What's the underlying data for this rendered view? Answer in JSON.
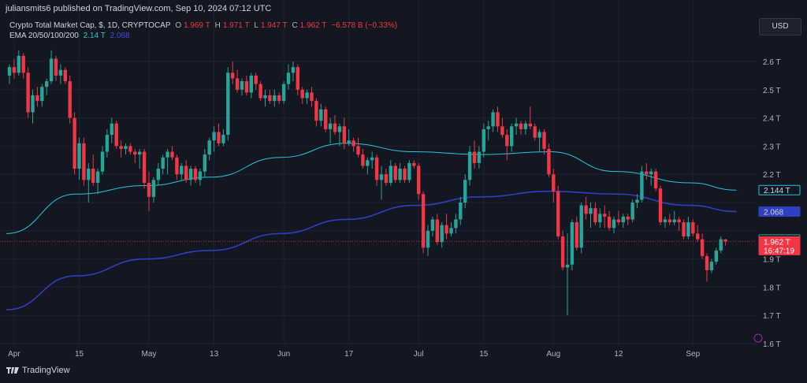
{
  "header": {
    "published": "juliansmits6 published on TradingView.com, Sep 10, 2024 07:12 UTC"
  },
  "legend": {
    "title": "Crypto Total Market Cap, $, 1D, CRYPTOCAP",
    "o_label": "O",
    "o_value": "1.969 T",
    "h_label": "H",
    "h_value": "1.971 T",
    "l_label": "L",
    "l_value": "1.947 T",
    "c_label": "C",
    "c_value": "1.962 T",
    "change": "−6.578 B (−0.33%)",
    "ema_label": "EMA 20/50/100/200",
    "ema1_value": "2.14 T",
    "ema2_value": "2.068"
  },
  "currency": "USD",
  "brand": "TradingView",
  "colors": {
    "up": "#26a69a",
    "down": "#f23645",
    "ema_fast": "#26c6da",
    "ema_slow": "#2f3fc2",
    "background": "#131722"
  },
  "chart_data": {
    "type": "candlestick",
    "y_axis": {
      "ticks": [
        "2.6 T",
        "2.5 T",
        "2.4 T",
        "2.3 T",
        "2.2 T",
        "1.9 T",
        "1.8 T",
        "1.7 T",
        "1.6 T"
      ],
      "tick_values": [
        2.6,
        2.5,
        2.4,
        2.3,
        2.2,
        1.9,
        1.8,
        1.7,
        1.6
      ],
      "range": [
        1.58,
        2.67
      ],
      "unit": "T"
    },
    "x_axis": {
      "ticks": [
        "Apr",
        "15",
        "May",
        "13",
        "Jun",
        "17",
        "Jul",
        "15",
        "Aug",
        "12",
        "Sep"
      ],
      "tick_index": [
        1,
        15,
        30,
        44,
        59,
        73,
        88,
        102,
        117,
        131,
        147
      ]
    },
    "price_labels": [
      {
        "text": "2.144 T",
        "value": 2.144,
        "style": "ema_fast"
      },
      {
        "text": "2.068",
        "value": 2.068,
        "style": "ema_slow"
      },
      {
        "text": "1.969 T",
        "value": 1.969,
        "style": "open"
      },
      {
        "text": "1.962 T",
        "value": 1.962,
        "style": "last"
      },
      {
        "text": "16:47:19",
        "value": 1.962,
        "style": "countdown"
      }
    ],
    "last_price": 1.962,
    "candles": [
      [
        2.55,
        2.59,
        2.52,
        2.58
      ],
      [
        2.58,
        2.61,
        2.54,
        2.56
      ],
      [
        2.56,
        2.64,
        2.55,
        2.62
      ],
      [
        2.62,
        2.63,
        2.54,
        2.56
      ],
      [
        2.56,
        2.58,
        2.4,
        2.42
      ],
      [
        2.42,
        2.5,
        2.38,
        2.48
      ],
      [
        2.48,
        2.51,
        2.44,
        2.46
      ],
      [
        2.46,
        2.52,
        2.44,
        2.51
      ],
      [
        2.51,
        2.54,
        2.48,
        2.53
      ],
      [
        2.53,
        2.64,
        2.52,
        2.61
      ],
      [
        2.61,
        2.62,
        2.53,
        2.55
      ],
      [
        2.55,
        2.59,
        2.52,
        2.57
      ],
      [
        2.57,
        2.58,
        2.52,
        2.53
      ],
      [
        2.53,
        2.55,
        2.38,
        2.4
      ],
      [
        2.4,
        2.42,
        2.2,
        2.22
      ],
      [
        2.22,
        2.33,
        2.18,
        2.31
      ],
      [
        2.31,
        2.33,
        2.16,
        2.18
      ],
      [
        2.18,
        2.24,
        2.1,
        2.22
      ],
      [
        2.22,
        2.27,
        2.16,
        2.17
      ],
      [
        2.17,
        2.22,
        2.13,
        2.21
      ],
      [
        2.21,
        2.3,
        2.2,
        2.28
      ],
      [
        2.28,
        2.36,
        2.26,
        2.34
      ],
      [
        2.34,
        2.4,
        2.31,
        2.38
      ],
      [
        2.38,
        2.39,
        2.29,
        2.3
      ],
      [
        2.3,
        2.32,
        2.26,
        2.29
      ],
      [
        2.29,
        2.31,
        2.27,
        2.3
      ],
      [
        2.3,
        2.31,
        2.27,
        2.28
      ],
      [
        2.28,
        2.29,
        2.24,
        2.27
      ],
      [
        2.27,
        2.29,
        2.22,
        2.28
      ],
      [
        2.28,
        2.29,
        2.15,
        2.17
      ],
      [
        2.17,
        2.21,
        2.07,
        2.12
      ],
      [
        2.12,
        2.19,
        2.1,
        2.18
      ],
      [
        2.18,
        2.24,
        2.16,
        2.22
      ],
      [
        2.22,
        2.27,
        2.2,
        2.26
      ],
      [
        2.26,
        2.29,
        2.2,
        2.28
      ],
      [
        2.28,
        2.3,
        2.25,
        2.26
      ],
      [
        2.26,
        2.27,
        2.18,
        2.2
      ],
      [
        2.2,
        2.24,
        2.18,
        2.23
      ],
      [
        2.23,
        2.25,
        2.17,
        2.18
      ],
      [
        2.18,
        2.23,
        2.16,
        2.22
      ],
      [
        2.22,
        2.23,
        2.17,
        2.18
      ],
      [
        2.18,
        2.22,
        2.16,
        2.21
      ],
      [
        2.21,
        2.29,
        2.19,
        2.27
      ],
      [
        2.27,
        2.33,
        2.25,
        2.32
      ],
      [
        2.32,
        2.37,
        2.28,
        2.35
      ],
      [
        2.35,
        2.38,
        2.3,
        2.31
      ],
      [
        2.31,
        2.36,
        2.3,
        2.34
      ],
      [
        2.34,
        2.58,
        2.32,
        2.56
      ],
      [
        2.56,
        2.6,
        2.52,
        2.54
      ],
      [
        2.54,
        2.57,
        2.49,
        2.5
      ],
      [
        2.5,
        2.54,
        2.48,
        2.53
      ],
      [
        2.53,
        2.55,
        2.48,
        2.49
      ],
      [
        2.49,
        2.56,
        2.47,
        2.55
      ],
      [
        2.55,
        2.56,
        2.5,
        2.52
      ],
      [
        2.52,
        2.53,
        2.46,
        2.47
      ],
      [
        2.47,
        2.5,
        2.44,
        2.48
      ],
      [
        2.48,
        2.5,
        2.45,
        2.46
      ],
      [
        2.46,
        2.5,
        2.44,
        2.48
      ],
      [
        2.48,
        2.49,
        2.45,
        2.46
      ],
      [
        2.46,
        2.53,
        2.45,
        2.52
      ],
      [
        2.52,
        2.59,
        2.5,
        2.56
      ],
      [
        2.56,
        2.6,
        2.53,
        2.58
      ],
      [
        2.58,
        2.59,
        2.48,
        2.5
      ],
      [
        2.5,
        2.51,
        2.45,
        2.47
      ],
      [
        2.47,
        2.5,
        2.45,
        2.49
      ],
      [
        2.49,
        2.51,
        2.44,
        2.46
      ],
      [
        2.46,
        2.47,
        2.37,
        2.39
      ],
      [
        2.39,
        2.45,
        2.37,
        2.43
      ],
      [
        2.43,
        2.44,
        2.35,
        2.36
      ],
      [
        2.36,
        2.4,
        2.31,
        2.38
      ],
      [
        2.38,
        2.41,
        2.34,
        2.35
      ],
      [
        2.35,
        2.38,
        2.3,
        2.37
      ],
      [
        2.37,
        2.4,
        2.29,
        2.31
      ],
      [
        2.31,
        2.36,
        2.3,
        2.32
      ],
      [
        2.32,
        2.33,
        2.28,
        2.3
      ],
      [
        2.3,
        2.33,
        2.26,
        2.27
      ],
      [
        2.27,
        2.29,
        2.22,
        2.23
      ],
      [
        2.23,
        2.26,
        2.2,
        2.25
      ],
      [
        2.25,
        2.28,
        2.22,
        2.26
      ],
      [
        2.26,
        2.27,
        2.16,
        2.18
      ],
      [
        2.18,
        2.23,
        2.11,
        2.2
      ],
      [
        2.2,
        2.22,
        2.16,
        2.17
      ],
      [
        2.17,
        2.25,
        2.16,
        2.23
      ],
      [
        2.23,
        2.24,
        2.17,
        2.18
      ],
      [
        2.18,
        2.24,
        2.17,
        2.22
      ],
      [
        2.22,
        2.23,
        2.17,
        2.18
      ],
      [
        2.18,
        2.25,
        2.17,
        2.24
      ],
      [
        2.24,
        2.25,
        2.22,
        2.23
      ],
      [
        2.23,
        2.24,
        2.11,
        2.13
      ],
      [
        2.13,
        2.14,
        1.92,
        1.94
      ],
      [
        1.94,
        2.02,
        1.91,
        2.0
      ],
      [
        2.0,
        2.05,
        1.98,
        2.04
      ],
      [
        2.04,
        2.06,
        1.95,
        1.96
      ],
      [
        1.96,
        2.03,
        1.94,
        2.02
      ],
      [
        2.02,
        2.06,
        1.97,
        1.99
      ],
      [
        1.99,
        2.03,
        1.98,
        2.01
      ],
      [
        2.01,
        2.06,
        1.99,
        2.04
      ],
      [
        2.04,
        2.12,
        2.02,
        2.1
      ],
      [
        2.1,
        2.2,
        2.08,
        2.18
      ],
      [
        2.18,
        2.3,
        2.16,
        2.28
      ],
      [
        2.28,
        2.32,
        2.22,
        2.24
      ],
      [
        2.24,
        2.3,
        2.22,
        2.28
      ],
      [
        2.28,
        2.38,
        2.26,
        2.36
      ],
      [
        2.36,
        2.39,
        2.32,
        2.37
      ],
      [
        2.37,
        2.43,
        2.35,
        2.42
      ],
      [
        2.42,
        2.44,
        2.35,
        2.37
      ],
      [
        2.37,
        2.4,
        2.33,
        2.34
      ],
      [
        2.34,
        2.36,
        2.25,
        2.3
      ],
      [
        2.3,
        2.38,
        2.28,
        2.37
      ],
      [
        2.37,
        2.4,
        2.34,
        2.38
      ],
      [
        2.38,
        2.39,
        2.34,
        2.36
      ],
      [
        2.36,
        2.39,
        2.34,
        2.38
      ],
      [
        2.38,
        2.44,
        2.36,
        2.37
      ],
      [
        2.37,
        2.38,
        2.32,
        2.33
      ],
      [
        2.33,
        2.36,
        2.28,
        2.35
      ],
      [
        2.35,
        2.36,
        2.27,
        2.29
      ],
      [
        2.29,
        2.31,
        2.19,
        2.2
      ],
      [
        2.2,
        2.22,
        2.1,
        2.14
      ],
      [
        2.14,
        2.16,
        1.97,
        1.98
      ],
      [
        1.98,
        2.0,
        1.86,
        1.87
      ],
      [
        1.87,
        1.99,
        1.7,
        1.88
      ],
      [
        1.88,
        2.04,
        1.86,
        2.03
      ],
      [
        2.03,
        2.05,
        1.93,
        1.94
      ],
      [
        1.94,
        2.1,
        1.92,
        2.09
      ],
      [
        2.09,
        2.12,
        2.04,
        2.06
      ],
      [
        2.06,
        2.1,
        2.01,
        2.08
      ],
      [
        2.08,
        2.1,
        2.02,
        2.03
      ],
      [
        2.03,
        2.08,
        2.01,
        2.06
      ],
      [
        2.06,
        2.09,
        2.01,
        2.05
      ],
      [
        2.05,
        2.07,
        2.0,
        2.01
      ],
      [
        2.01,
        2.05,
        1.99,
        2.04
      ],
      [
        2.04,
        2.07,
        2.02,
        2.03
      ],
      [
        2.03,
        2.06,
        2.01,
        2.05
      ],
      [
        2.05,
        2.06,
        2.02,
        2.04
      ],
      [
        2.04,
        2.11,
        2.03,
        2.1
      ],
      [
        2.1,
        2.13,
        2.08,
        2.11
      ],
      [
        2.11,
        2.23,
        2.1,
        2.21
      ],
      [
        2.21,
        2.24,
        2.18,
        2.2
      ],
      [
        2.2,
        2.22,
        2.16,
        2.21
      ],
      [
        2.21,
        2.22,
        2.14,
        2.15
      ],
      [
        2.15,
        2.16,
        2.02,
        2.03
      ],
      [
        2.03,
        2.05,
        2.01,
        2.04
      ],
      [
        2.04,
        2.06,
        2.02,
        2.03
      ],
      [
        2.03,
        2.07,
        2.02,
        2.04
      ],
      [
        2.04,
        2.05,
        2.0,
        2.03
      ],
      [
        2.03,
        2.04,
        1.97,
        1.98
      ],
      [
        1.98,
        2.05,
        1.97,
        2.03
      ],
      [
        2.03,
        2.04,
        1.98,
        1.99
      ],
      [
        1.99,
        2.02,
        1.96,
        1.97
      ],
      [
        1.97,
        1.99,
        1.9,
        1.91
      ],
      [
        1.91,
        1.92,
        1.82,
        1.86
      ],
      [
        1.86,
        1.9,
        1.85,
        1.89
      ],
      [
        1.89,
        1.94,
        1.88,
        1.93
      ],
      [
        1.93,
        1.98,
        1.92,
        1.97
      ],
      [
        1.969,
        1.971,
        1.947,
        1.962
      ]
    ],
    "ema_fast": [
      [
        0,
        1.99
      ],
      [
        15,
        2.13
      ],
      [
        30,
        2.16
      ],
      [
        44,
        2.19
      ],
      [
        59,
        2.26
      ],
      [
        73,
        2.31
      ],
      [
        88,
        2.28
      ],
      [
        102,
        2.27
      ],
      [
        117,
        2.28
      ],
      [
        131,
        2.21
      ],
      [
        147,
        2.17
      ],
      [
        157,
        2.144
      ]
    ],
    "ema_slow": [
      [
        0,
        1.72
      ],
      [
        15,
        1.84
      ],
      [
        30,
        1.9
      ],
      [
        44,
        1.93
      ],
      [
        59,
        1.99
      ],
      [
        73,
        2.04
      ],
      [
        88,
        2.09
      ],
      [
        102,
        2.12
      ],
      [
        117,
        2.14
      ],
      [
        131,
        2.13
      ],
      [
        147,
        2.09
      ],
      [
        157,
        2.068
      ]
    ]
  }
}
